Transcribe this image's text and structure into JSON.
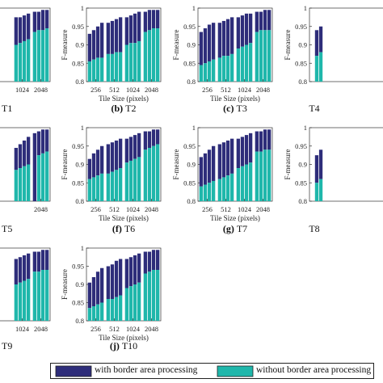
{
  "colors": {
    "with": "#2e2d7a",
    "without": "#1fb7ab",
    "axis": "#333333"
  },
  "legend": {
    "with_label": "with border area processing",
    "without_label": "without border area processing"
  },
  "chart_data": [
    {
      "type": "bar",
      "caption": "T1",
      "caption_letter": "",
      "ylabel": "",
      "xlabel": "",
      "xticks": [
        "1024",
        "2048"
      ],
      "yticks": [],
      "ylim": [
        0.8,
        1.0
      ],
      "groups": [
        {
          "without": [
            0.9,
            0.905,
            0.91,
            0.915
          ],
          "total": [
            0.975,
            0.975,
            0.98,
            0.985
          ]
        },
        {
          "without": [
            0.935,
            0.94,
            0.94,
            0.945
          ],
          "total": [
            0.99,
            0.99,
            0.995,
            0.995
          ]
        }
      ]
    },
    {
      "type": "bar",
      "caption": "T2",
      "caption_letter": "(b)",
      "ylabel": "F-measure",
      "xlabel": "Tile Size (pixels)",
      "xticks": [
        "256",
        "512",
        "1024",
        "2048"
      ],
      "yticks": [
        "0.8",
        "0.85",
        "0.9",
        "0.95",
        "1"
      ],
      "ylim": [
        0.8,
        1.0
      ],
      "groups": [
        {
          "without": [
            0.855,
            0.86,
            0.865,
            0.865
          ],
          "total": [
            0.93,
            0.94,
            0.95,
            0.96
          ]
        },
        {
          "without": [
            0.875,
            0.875,
            0.88,
            0.88
          ],
          "total": [
            0.96,
            0.965,
            0.97,
            0.975
          ]
        },
        {
          "without": [
            0.9,
            0.905,
            0.905,
            0.91
          ],
          "total": [
            0.975,
            0.98,
            0.985,
            0.99
          ]
        },
        {
          "without": [
            0.935,
            0.94,
            0.945,
            0.945
          ],
          "total": [
            0.99,
            0.995,
            0.995,
            0.995
          ]
        }
      ]
    },
    {
      "type": "bar",
      "caption": "T3",
      "caption_letter": "(c)",
      "ylabel": "F-measure",
      "xlabel": "Tile Size (pixels)",
      "xticks": [
        "256",
        "512",
        "1024",
        "2048"
      ],
      "yticks": [
        "0.8",
        "0.85",
        "0.9",
        "0.95",
        "1"
      ],
      "ylim": [
        0.8,
        1.0
      ],
      "groups": [
        {
          "without": [
            0.845,
            0.85,
            0.855,
            0.86
          ],
          "total": [
            0.935,
            0.945,
            0.955,
            0.96
          ]
        },
        {
          "without": [
            0.865,
            0.87,
            0.87,
            0.875
          ],
          "total": [
            0.96,
            0.965,
            0.97,
            0.975
          ]
        },
        {
          "without": [
            0.89,
            0.895,
            0.9,
            0.905
          ],
          "total": [
            0.975,
            0.98,
            0.985,
            0.985
          ]
        },
        {
          "without": [
            0.935,
            0.94,
            0.94,
            0.94
          ],
          "total": [
            0.99,
            0.99,
            0.995,
            0.995
          ]
        }
      ]
    },
    {
      "type": "bar",
      "caption": "T4",
      "caption_letter": "",
      "ylabel": "F-measure",
      "xlabel": "",
      "xticks": [],
      "yticks": [
        "0.8",
        "0.85",
        "0.9",
        "0.95",
        "1"
      ],
      "ylim": [
        0.8,
        1.0
      ],
      "groups": [
        {
          "without": [
            0.87,
            0.88
          ],
          "total": [
            0.94,
            0.95
          ]
        }
      ]
    },
    {
      "type": "bar",
      "caption": "T5",
      "caption_letter": "",
      "ylabel": "",
      "xlabel": "",
      "xticks": [
        "2048"
      ],
      "yticks": [],
      "ylim": [
        0.8,
        1.0
      ],
      "groups": [
        {
          "without": [
            0.885,
            0.89,
            0.895,
            0.9
          ],
          "total": [
            0.945,
            0.955,
            0.965,
            0.975
          ]
        },
        {
          "without": [
            0.8,
            0.925,
            0.93,
            0.935
          ],
          "total": [
            0.985,
            0.99,
            0.995,
            0.995
          ]
        }
      ]
    },
    {
      "type": "bar",
      "caption": "T6",
      "caption_letter": "(f)",
      "ylabel": "F-measure",
      "xlabel": "Tile Size (pixels)",
      "xticks": [
        "256",
        "512",
        "1024",
        "2048"
      ],
      "yticks": [
        "0.8",
        "0.85",
        "0.9",
        "0.95",
        "1"
      ],
      "ylim": [
        0.8,
        1.0
      ],
      "groups": [
        {
          "without": [
            0.86,
            0.865,
            0.87,
            0.875
          ],
          "total": [
            0.915,
            0.93,
            0.94,
            0.95
          ]
        },
        {
          "without": [
            0.875,
            0.88,
            0.885,
            0.89
          ],
          "total": [
            0.955,
            0.96,
            0.965,
            0.97
          ]
        },
        {
          "without": [
            0.905,
            0.91,
            0.915,
            0.92
          ],
          "total": [
            0.97,
            0.975,
            0.98,
            0.985
          ]
        },
        {
          "without": [
            0.94,
            0.945,
            0.95,
            0.955
          ],
          "total": [
            0.99,
            0.99,
            0.995,
            0.995
          ]
        }
      ]
    },
    {
      "type": "bar",
      "caption": "T7",
      "caption_letter": "(g)",
      "ylabel": "F-measure",
      "xlabel": "Tile Size (pixels)",
      "xticks": [
        "256",
        "512",
        "1024",
        "2048"
      ],
      "yticks": [
        "0.8",
        "0.85",
        "0.9",
        "0.95",
        "1"
      ],
      "ylim": [
        0.8,
        1.0
      ],
      "groups": [
        {
          "without": [
            0.84,
            0.845,
            0.85,
            0.855
          ],
          "total": [
            0.92,
            0.93,
            0.94,
            0.95
          ]
        },
        {
          "without": [
            0.86,
            0.865,
            0.87,
            0.875
          ],
          "total": [
            0.955,
            0.96,
            0.965,
            0.97
          ]
        },
        {
          "without": [
            0.89,
            0.895,
            0.9,
            0.905
          ],
          "total": [
            0.97,
            0.975,
            0.98,
            0.985
          ]
        },
        {
          "without": [
            0.935,
            0.935,
            0.94,
            0.94
          ],
          "total": [
            0.99,
            0.99,
            0.995,
            0.995
          ]
        }
      ]
    },
    {
      "type": "bar",
      "caption": "T8",
      "caption_letter": "",
      "ylabel": "F-measure",
      "xlabel": "",
      "xticks": [],
      "yticks": [
        "0.8",
        "0.85",
        "0.9",
        "0.95",
        "1"
      ],
      "ylim": [
        0.8,
        1.0
      ],
      "groups": [
        {
          "without": [
            0.85,
            0.86
          ],
          "total": [
            0.925,
            0.94
          ]
        }
      ]
    },
    {
      "type": "bar",
      "caption": "T9",
      "caption_letter": "",
      "ylabel": "",
      "xlabel": "",
      "xticks": [
        "1024",
        "2048"
      ],
      "yticks": [],
      "ylim": [
        0.8,
        1.0
      ],
      "groups": [
        {
          "without": [
            0.9,
            0.905,
            0.91,
            0.915
          ],
          "total": [
            0.97,
            0.975,
            0.98,
            0.985
          ]
        },
        {
          "without": [
            0.935,
            0.935,
            0.94,
            0.94
          ],
          "total": [
            0.99,
            0.99,
            0.995,
            0.995
          ]
        }
      ]
    },
    {
      "type": "bar",
      "caption": "T10",
      "caption_letter": "(j)",
      "ylabel": "F-measure",
      "xlabel": "Tile Size (pixels)",
      "xticks": [
        "256",
        "512",
        "1024",
        "2048"
      ],
      "yticks": [
        "0.8",
        "0.85",
        "0.9",
        "0.95",
        "1"
      ],
      "ylim": [
        0.8,
        1.0
      ],
      "groups": [
        {
          "without": [
            0.835,
            0.84,
            0.845,
            0.85
          ],
          "total": [
            0.905,
            0.92,
            0.935,
            0.945
          ]
        },
        {
          "without": [
            0.86,
            0.86,
            0.865,
            0.87
          ],
          "total": [
            0.95,
            0.955,
            0.965,
            0.97
          ]
        },
        {
          "without": [
            0.89,
            0.895,
            0.9,
            0.905
          ],
          "total": [
            0.97,
            0.975,
            0.98,
            0.985
          ]
        },
        {
          "without": [
            0.93,
            0.935,
            0.94,
            0.94
          ],
          "total": [
            0.99,
            0.99,
            0.995,
            0.995
          ]
        }
      ]
    }
  ]
}
